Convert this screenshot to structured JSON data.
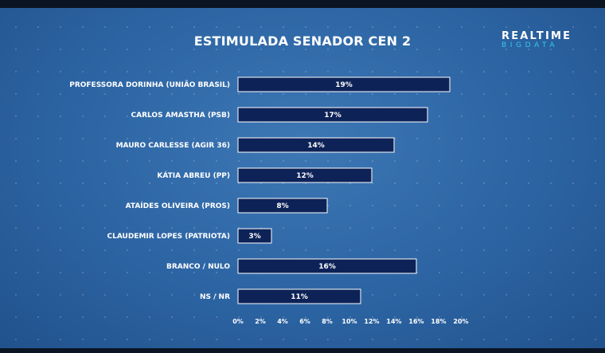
{
  "brand": {
    "line1": "REALTIME",
    "line2": "BIGDATA"
  },
  "colors": {
    "bar": "#0d2257",
    "bar_border": "#ffffff",
    "background": "#2c64a3",
    "brand_accent": "#35c8f0"
  },
  "chart_data": {
    "type": "bar",
    "orientation": "horizontal",
    "title": "ESTIMULADA SENADOR CEN 2",
    "categories": [
      "PROFESSORA DORINHA (UNIÃO BRASIL)",
      "CARLOS AMASTHA (PSB)",
      "MAURO CARLESSE (AGIR 36)",
      "KÁTIA ABREU (PP)",
      "ATAÍDES OLIVEIRA (PROS)",
      "CLAUDEMIR LOPES (PATRIOTA)",
      "BRANCO / NULO",
      "NS / NR"
    ],
    "values": [
      19,
      17,
      14,
      12,
      8,
      3,
      16,
      11
    ],
    "value_labels": [
      "19%",
      "17%",
      "14%",
      "12%",
      "8%",
      "3%",
      "16%",
      "11%"
    ],
    "xlim": [
      0,
      20
    ],
    "ticks": [
      0,
      2,
      4,
      6,
      8,
      10,
      12,
      14,
      16,
      18,
      20
    ],
    "tick_labels": [
      "0%",
      "2%",
      "4%",
      "6%",
      "8%",
      "10%",
      "12%",
      "14%",
      "16%",
      "18%",
      "20%"
    ],
    "grid": false,
    "legend": "none"
  }
}
